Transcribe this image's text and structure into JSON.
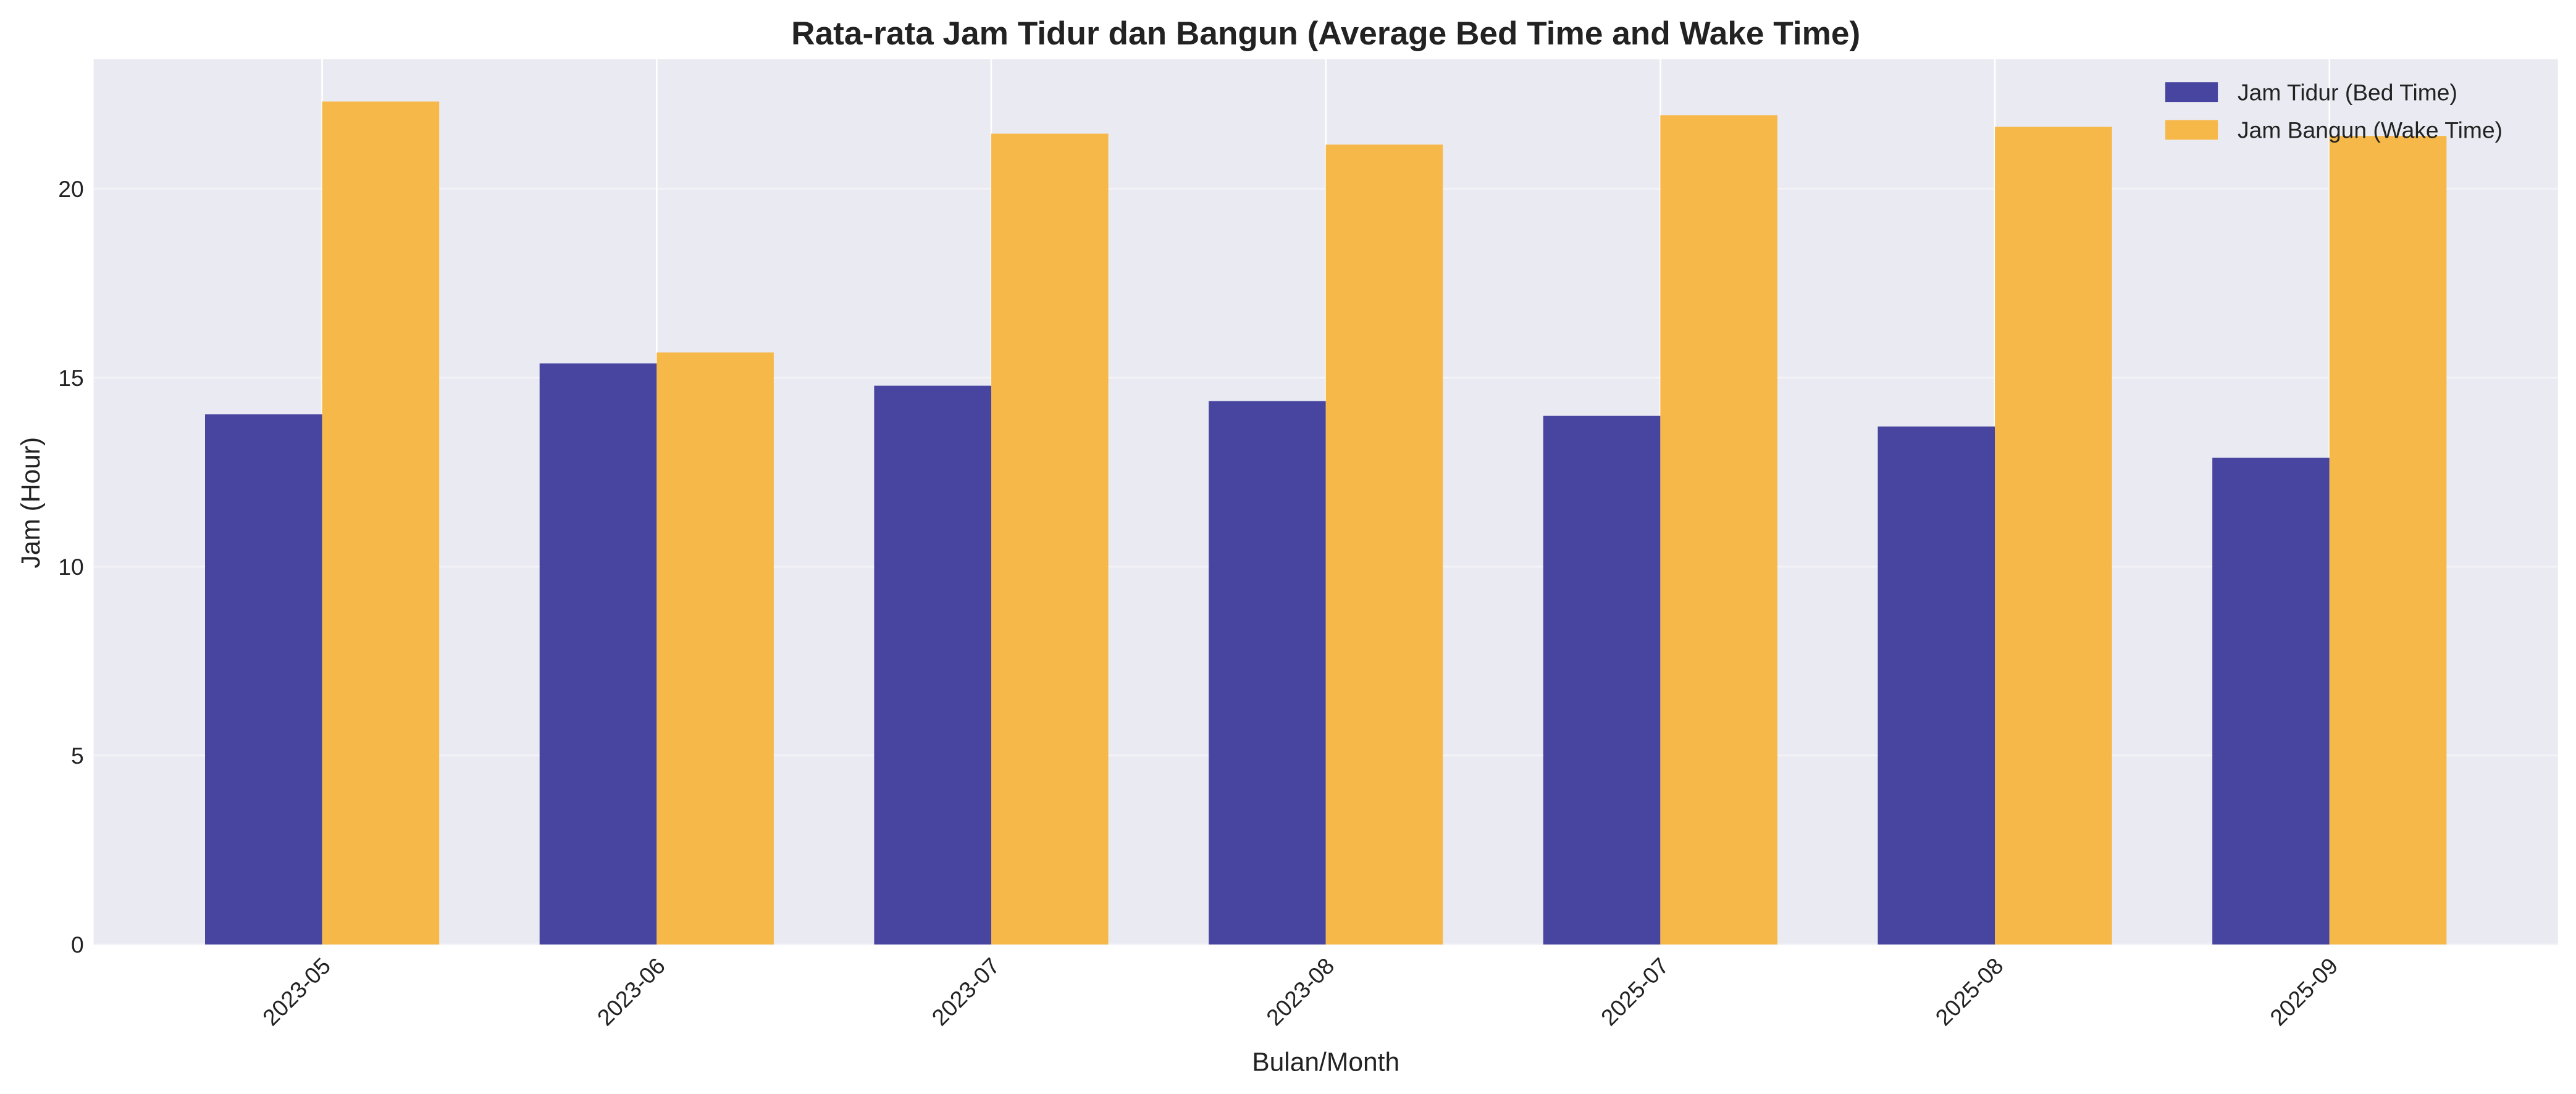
{
  "chart_data": {
    "type": "bar",
    "title": "Rata-rata Jam Tidur dan Bangun (Average Bed Time and Wake Time)",
    "xlabel": "Bulan/Month",
    "ylabel": "Jam (Hour)",
    "categories": [
      "2023-05",
      "2023-06",
      "2023-07",
      "2023-08",
      "2025-07",
      "2025-08",
      "2025-09"
    ],
    "series": [
      {
        "name": "Jam Tidur (Bed Time)",
        "color": "#4745A0",
        "values": [
          14.03,
          15.38,
          14.79,
          14.38,
          13.99,
          13.71,
          12.88
        ]
      },
      {
        "name": "Jam Bangun (Wake Time)",
        "color": "#F7B84A",
        "values": [
          22.31,
          15.67,
          21.46,
          21.17,
          21.95,
          21.64,
          21.4
        ]
      }
    ],
    "ylim": [
      0,
      23.43
    ],
    "yticks": [
      0,
      5,
      10,
      15,
      20
    ],
    "grid": true,
    "legend": "top-right",
    "background": "#EAEAF2"
  }
}
